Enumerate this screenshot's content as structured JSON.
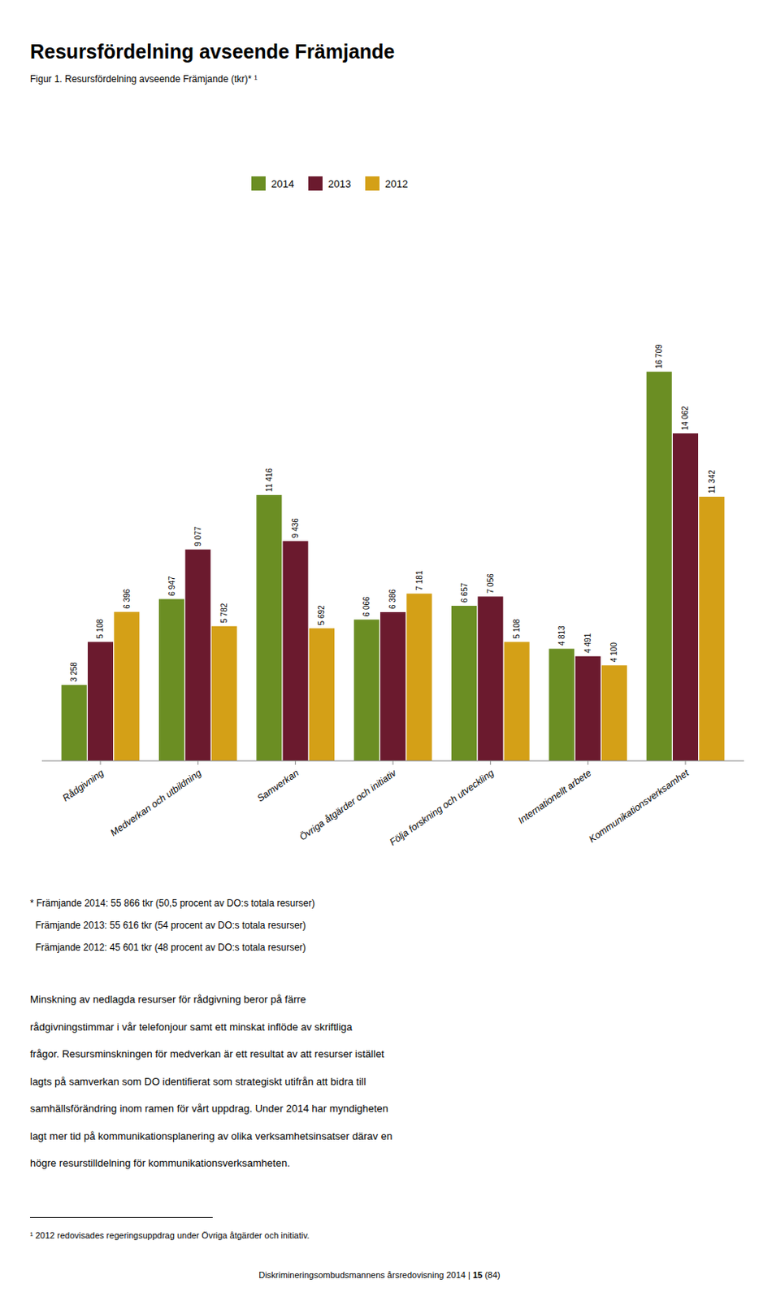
{
  "chart_data": {
    "type": "bar",
    "title": "Resursfördelning avseende Främjande",
    "subtitle": "Figur 1. Resursfördelning avseende Främjande (tkr)* ¹",
    "categories": [
      "Rådgivning",
      "Medverkan och utbildning",
      "Samverkan",
      "Övriga åtgärder och initiativ",
      "Följa forskning och utveckling",
      "Internationellt arbete",
      "Kommunikationsverksamhet"
    ],
    "series": [
      {
        "name": "2014",
        "color": "#6b8e23",
        "values": [
          3258,
          6947,
          11416,
          6066,
          6657,
          4813,
          16709
        ],
        "value_labels": [
          "3 258",
          "6 947",
          "11 416",
          "6 066",
          "6 657",
          "4 813",
          "16 709"
        ]
      },
      {
        "name": "2013",
        "color": "#6b1a2e",
        "values": [
          5108,
          9077,
          9436,
          6386,
          7056,
          4491,
          14062
        ],
        "value_labels": [
          "5 108",
          "9 077",
          "9 436",
          "6 386",
          "7 056",
          "4 491",
          "14 062"
        ]
      },
      {
        "name": "2012",
        "color": "#d4a017",
        "values": [
          6396,
          5782,
          5692,
          7181,
          5108,
          4100,
          11342
        ],
        "value_labels": [
          "6 396",
          "5 782",
          "5 692",
          "7 181",
          "5 108",
          "4 100",
          "11 342"
        ]
      }
    ],
    "ylim": [
      0,
      21500
    ],
    "data_labels": true,
    "tick_labels": "x",
    "legend": "top",
    "grid": false
  },
  "footnote_lines": [
    "* Främjande 2014: 55 866 tkr (50,5 procent av DO:s totala resurser)",
    "  Främjande 2013: 55 616 tkr (54 procent av DO:s totala resurser)",
    "  Främjande 2012: 45 601 tkr (48 procent av DO:s totala resurser)"
  ],
  "body_text_lines": [
    "Minskning av nedlagda resurser för rådgivning beror på färre",
    "rådgivningstimmar i vår telefonjour samt ett minskat inflöde av skriftliga",
    "frågor. Resursminskningen för medverkan är ett resultat av att resurser istället",
    "lagts på samverkan som DO identifierat som strategiskt utifrån att bidra till",
    "samhällsförändring inom ramen för vårt uppdrag. Under 2014 har myndigheten",
    "lagt mer tid på kommunikationsplanering av olika verksamhetsinsatser därav en",
    "högre resurstilldelning för kommunikationsverksamheten."
  ],
  "footnote2": "¹ 2012 redovisades regeringsuppdrag under Övriga åtgärder och initiativ.",
  "footer": [
    "Diskrimineringsombudsmannens årsredovisning 2014 | ",
    "15",
    " (84)"
  ]
}
